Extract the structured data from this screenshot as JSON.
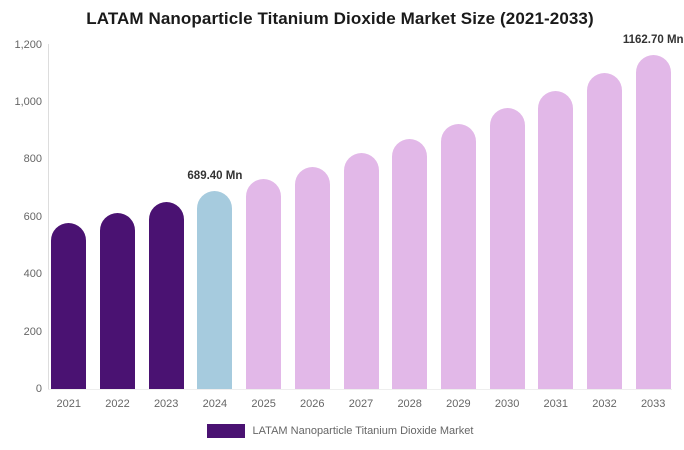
{
  "chart_data": {
    "type": "bar",
    "title": "LATAM Nanoparticle Titanium Dioxide Market Size (2021-2033)",
    "unit": "Mn",
    "categories": [
      "2021",
      "2022",
      "2023",
      "2024",
      "2025",
      "2026",
      "2027",
      "2028",
      "2029",
      "2030",
      "2031",
      "2032",
      "2033"
    ],
    "values": [
      579,
      614,
      650,
      689.4,
      731,
      775,
      821,
      870,
      922,
      978,
      1037,
      1099,
      1162.7
    ],
    "bar_colors": [
      "#4A1272",
      "#4A1272",
      "#4A1272",
      "#A6CBDE",
      "#E2B8E8",
      "#E2B8E8",
      "#E2B8E8",
      "#E2B8E8",
      "#E2B8E8",
      "#E2B8E8",
      "#E2B8E8",
      "#E2B8E8",
      "#E2B8E8"
    ],
    "annotations": [
      {
        "category": "2024",
        "text": "689.40 Mn"
      },
      {
        "category": "2033",
        "text": "1162.70 Mn"
      }
    ],
    "ylim": [
      0,
      1200
    ],
    "yticks": [
      0,
      200,
      400,
      600,
      800,
      1000,
      1200
    ],
    "ytick_labels": [
      "0",
      "200",
      "400",
      "600",
      "800",
      "1,000",
      "1,200"
    ],
    "grid": false,
    "legend_position": "bottom",
    "legend": [
      {
        "label": "LATAM Nanoparticle Titanium Dioxide Market",
        "color": "#4A1272"
      }
    ]
  },
  "colors": {
    "historical_bar": "#4A1272",
    "current_year_bar": "#A6CBDE",
    "forecast_bar": "#E2B8E8",
    "axis_line": "#DDDDDD",
    "tick_text": "#666666",
    "title_text": "#1A1A1A",
    "annotation_text": "#333333"
  }
}
